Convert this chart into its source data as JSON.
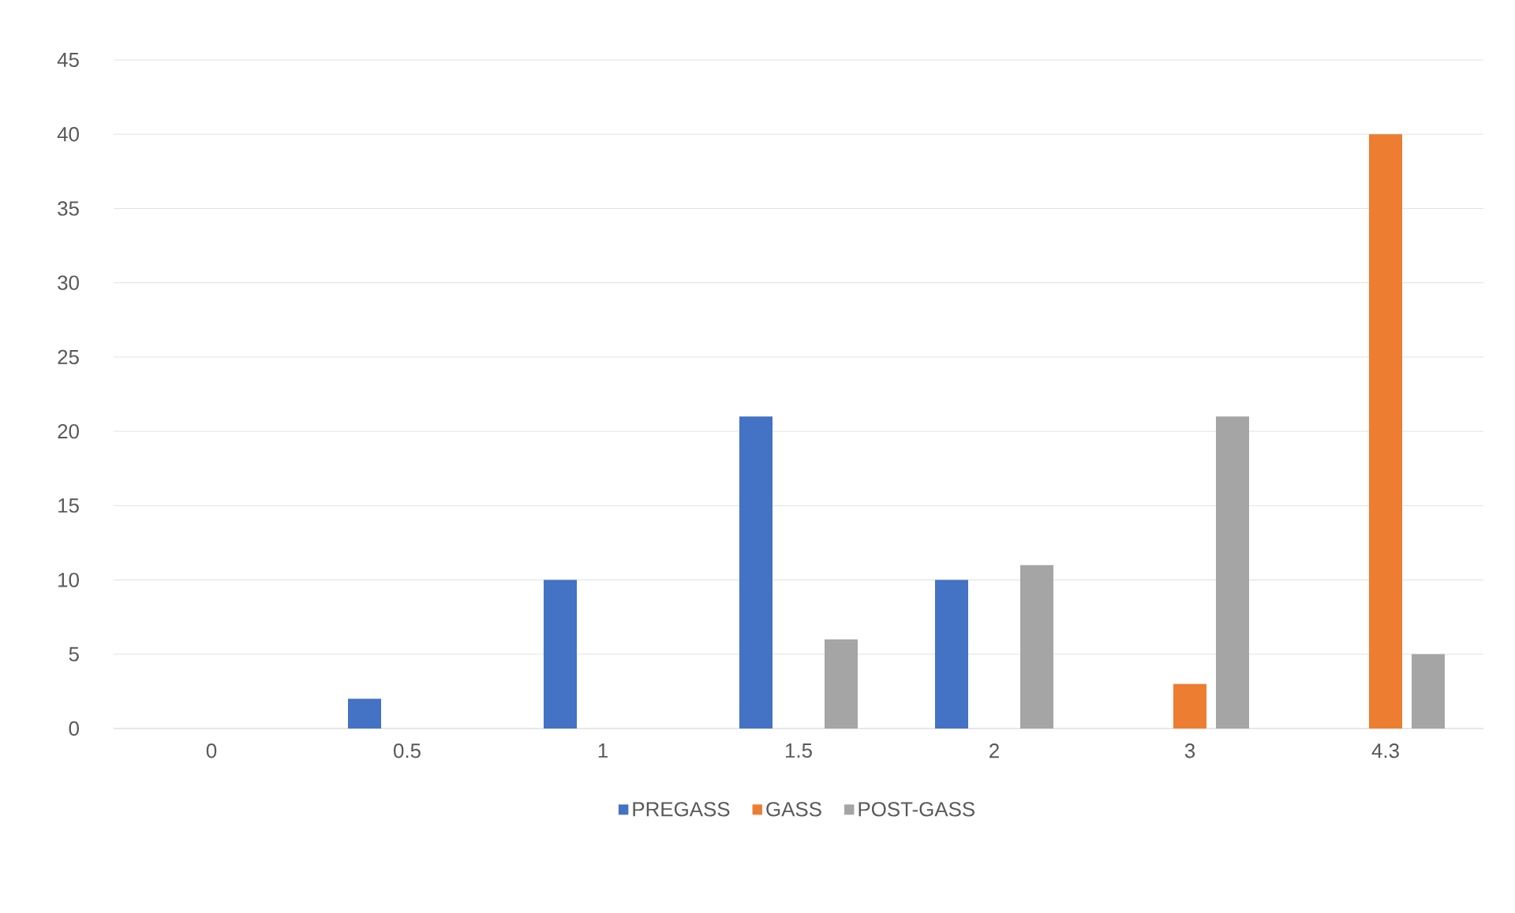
{
  "chart_data": {
    "type": "bar",
    "categories": [
      "0",
      "0.5",
      "1",
      "1.5",
      "2",
      "3",
      "4.3"
    ],
    "series": [
      {
        "name": "PREGASS",
        "color": "#4472c4",
        "values": [
          0,
          2,
          10,
          21,
          10,
          0,
          0
        ]
      },
      {
        "name": "GASS",
        "color": "#ed7d31",
        "values": [
          0,
          0,
          0,
          0,
          0,
          3,
          40
        ]
      },
      {
        "name": "POST-GASS",
        "color": "#a5a5a5",
        "values": [
          0,
          0,
          0,
          6,
          11,
          21,
          5
        ]
      }
    ],
    "ylim": [
      0,
      45
    ],
    "yticks": [
      0,
      5,
      10,
      15,
      20,
      25,
      30,
      35,
      40,
      45
    ],
    "grid": "y",
    "legend": "bottom"
  }
}
